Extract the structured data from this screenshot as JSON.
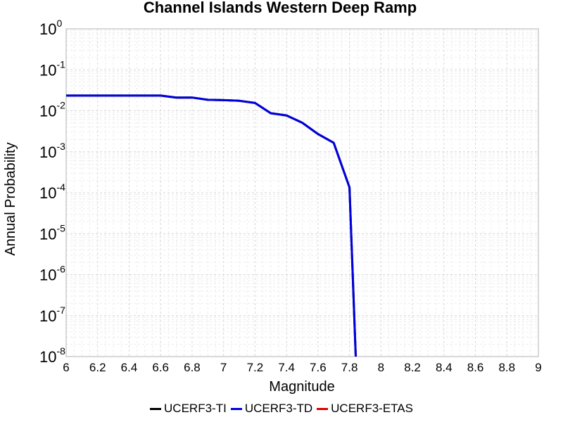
{
  "chart_data": {
    "type": "line",
    "title": "Channel Islands Western Deep Ramp",
    "xlabel": "Magnitude",
    "ylabel": "Annual Probability",
    "xlim": [
      6,
      9
    ],
    "ylim": [
      1e-08,
      1
    ],
    "y_scale": "log",
    "grid": true,
    "legend_position": "bottom",
    "x_ticks": [
      "6",
      "6.2",
      "6.4",
      "6.6",
      "6.8",
      "7",
      "7.2",
      "7.4",
      "7.6",
      "7.8",
      "8",
      "8.2",
      "8.4",
      "8.6",
      "8.8",
      "9"
    ],
    "y_ticks": [
      {
        "base": "10",
        "exp": "-8"
      },
      {
        "base": "10",
        "exp": "-7"
      },
      {
        "base": "10",
        "exp": "-6"
      },
      {
        "base": "10",
        "exp": "-5"
      },
      {
        "base": "10",
        "exp": "-4"
      },
      {
        "base": "10",
        "exp": "-3"
      },
      {
        "base": "10",
        "exp": "-2"
      },
      {
        "base": "10",
        "exp": "-1"
      },
      {
        "base": "10",
        "exp": "0"
      }
    ],
    "series": [
      {
        "name": "UCERF3-TI",
        "color": "#000000",
        "x": [
          6.0,
          6.1,
          6.2,
          6.3,
          6.4,
          6.5,
          6.6,
          6.7,
          6.8,
          6.9,
          7.0,
          7.1,
          7.2,
          7.3,
          7.4,
          7.5,
          7.6,
          7.7,
          7.8,
          7.84
        ],
        "y": [
          0.0235,
          0.0235,
          0.0235,
          0.0235,
          0.0235,
          0.0235,
          0.0235,
          0.021,
          0.021,
          0.0185,
          0.0182,
          0.0175,
          0.0155,
          0.0087,
          0.0077,
          0.0051,
          0.0027,
          0.00165,
          0.000135,
          1e-08
        ]
      },
      {
        "name": "UCERF3-TD",
        "color": "#0000dd",
        "x": [
          6.0,
          6.1,
          6.2,
          6.3,
          6.4,
          6.5,
          6.6,
          6.7,
          6.8,
          6.9,
          7.0,
          7.1,
          7.2,
          7.3,
          7.4,
          7.5,
          7.6,
          7.7,
          7.8,
          7.84
        ],
        "y": [
          0.0235,
          0.0235,
          0.0235,
          0.0235,
          0.0235,
          0.0235,
          0.0235,
          0.021,
          0.021,
          0.0185,
          0.0182,
          0.0175,
          0.0155,
          0.0087,
          0.0077,
          0.0051,
          0.0027,
          0.00165,
          0.000135,
          1e-08
        ]
      },
      {
        "name": "UCERF3-ETAS",
        "color": "#dd0000",
        "x": [],
        "y": []
      }
    ]
  }
}
